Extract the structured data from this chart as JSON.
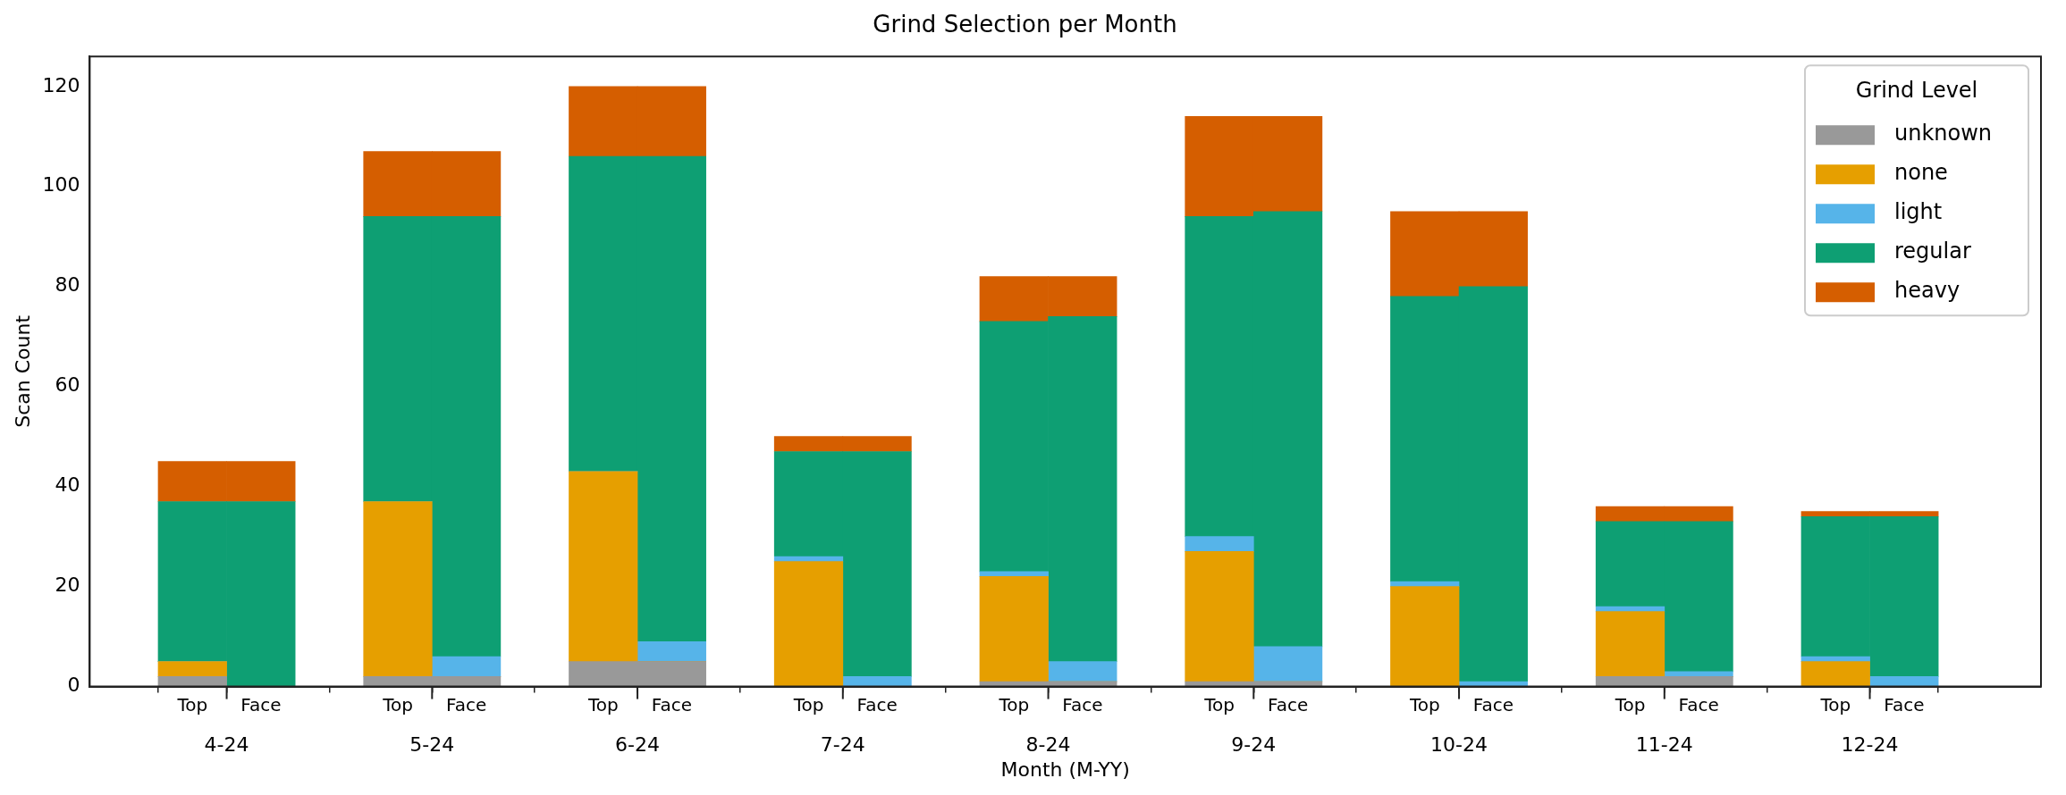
{
  "chart_data": {
    "type": "bar",
    "title": "Grind Selection per Month",
    "xlabel": "Month (M-YY)",
    "ylabel": "Scan Count",
    "legend_title": "Grind Level",
    "legend": "top right",
    "stacked": true,
    "categories": [
      "Top",
      "Face",
      "Top",
      "Face",
      "Top",
      "Face",
      "Top",
      "Face",
      "Top",
      "Face",
      "Top",
      "Face",
      "Top",
      "Face",
      "Top",
      "Face",
      "Top",
      "Face"
    ],
    "annotations": [
      "4-24",
      "5-24",
      "6-24",
      "7-24",
      "8-24",
      "9-24",
      "10-24",
      "11-24",
      "12-24"
    ],
    "ylim": [
      0,
      126
    ],
    "yticks": [
      0,
      20,
      40,
      60,
      80,
      100,
      120
    ],
    "series": [
      {
        "name": "unknown",
        "color": "#999999",
        "values": [
          2,
          0,
          2,
          2,
          5,
          5,
          0,
          0,
          1,
          1,
          1,
          1,
          0,
          0,
          2,
          2,
          0,
          0
        ]
      },
      {
        "name": "none",
        "color": "#e69f00",
        "values": [
          3,
          0,
          35,
          0,
          38,
          0,
          25,
          0,
          21,
          0,
          26,
          0,
          20,
          0,
          13,
          0,
          5,
          0
        ]
      },
      {
        "name": "light",
        "color": "#56b4e9",
        "values": [
          0,
          0,
          0,
          4,
          0,
          4,
          1,
          2,
          1,
          4,
          3,
          7,
          1,
          1,
          1,
          1,
          1,
          2
        ]
      },
      {
        "name": "regular",
        "color": "#0e9f73",
        "values": [
          32,
          37,
          57,
          88,
          63,
          97,
          21,
          45,
          50,
          69,
          64,
          87,
          57,
          79,
          17,
          30,
          28,
          32
        ]
      },
      {
        "name": "heavy",
        "color": "#d55e00",
        "values": [
          8,
          8,
          13,
          13,
          14,
          14,
          3,
          3,
          9,
          8,
          20,
          19,
          17,
          15,
          3,
          3,
          1,
          1
        ]
      }
    ]
  }
}
